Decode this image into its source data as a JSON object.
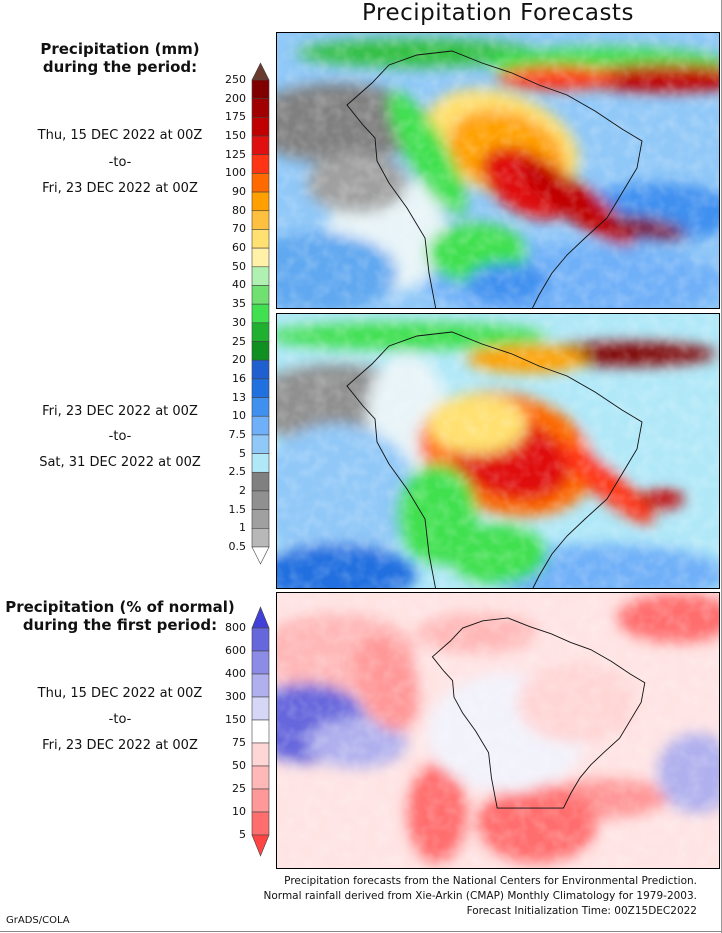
{
  "title": "Precipitation Forecasts",
  "section1": {
    "header_line1": "Precipitation (mm)",
    "header_line2": "during the period:",
    "start": "Thu, 15 DEC 2022 at 00Z",
    "to": "-to-",
    "end": "Fri, 23 DEC 2022 at 00Z"
  },
  "section2": {
    "start": "Fri, 23 DEC 2022 at 00Z",
    "to": "-to-",
    "end": "Sat, 31 DEC 2022 at 00Z"
  },
  "section3": {
    "header_line1": "Precipitation (% of normal)",
    "header_line2": "during the first period:",
    "start": "Thu, 15 DEC 2022 at 00Z",
    "to": "-to-",
    "end": "Fri, 23 DEC 2022 at 00Z"
  },
  "precip_colorbar": {
    "labels": [
      "250",
      "200",
      "175",
      "150",
      "125",
      "100",
      "90",
      "80",
      "70",
      "60",
      "50",
      "40",
      "35",
      "30",
      "25",
      "20",
      "16",
      "13",
      "10",
      "7.5",
      "5",
      "2.5",
      "2",
      "1.5",
      "1",
      "0.5"
    ],
    "over_color": "#6b3a2e",
    "colors": [
      "#800000",
      "#a00000",
      "#c00000",
      "#e01010",
      "#ff3414",
      "#ff6a00",
      "#ffa000",
      "#ffc040",
      "#ffe070",
      "#fff2a8",
      "#b0f0b0",
      "#70e070",
      "#40e050",
      "#20b030",
      "#109020",
      "#1f5fcf",
      "#2070e0",
      "#4090f0",
      "#70b0f8",
      "#90c8f8",
      "#b0e8f8",
      "#808080",
      "#909090",
      "#a0a0a0",
      "#b8b8b8"
    ],
    "under_color": "#ffffff"
  },
  "percent_colorbar": {
    "labels": [
      "800",
      "600",
      "400",
      "300",
      "150",
      "75",
      "50",
      "25",
      "10",
      "5"
    ],
    "over_color": "#4040d8",
    "colors": [
      "#6666dd",
      "#8c8ce6",
      "#b0b0ee",
      "#d6d6f6",
      "#ffffff",
      "#ffd6d6",
      "#ffb8b8",
      "#ff9898",
      "#ff6e6e"
    ],
    "under_color": "#ff4444"
  },
  "footer": {
    "line1": "Precipitation forecasts from the National Centers for Environmental Prediction.",
    "line2": "Normal rainfall derived from Xie-Arkin (CMAP) Monthly Climatology for 1979-2003.",
    "line3": "Forecast Initialization Time: 00Z15DEC2022"
  },
  "credit": "GrADS/COLA"
}
